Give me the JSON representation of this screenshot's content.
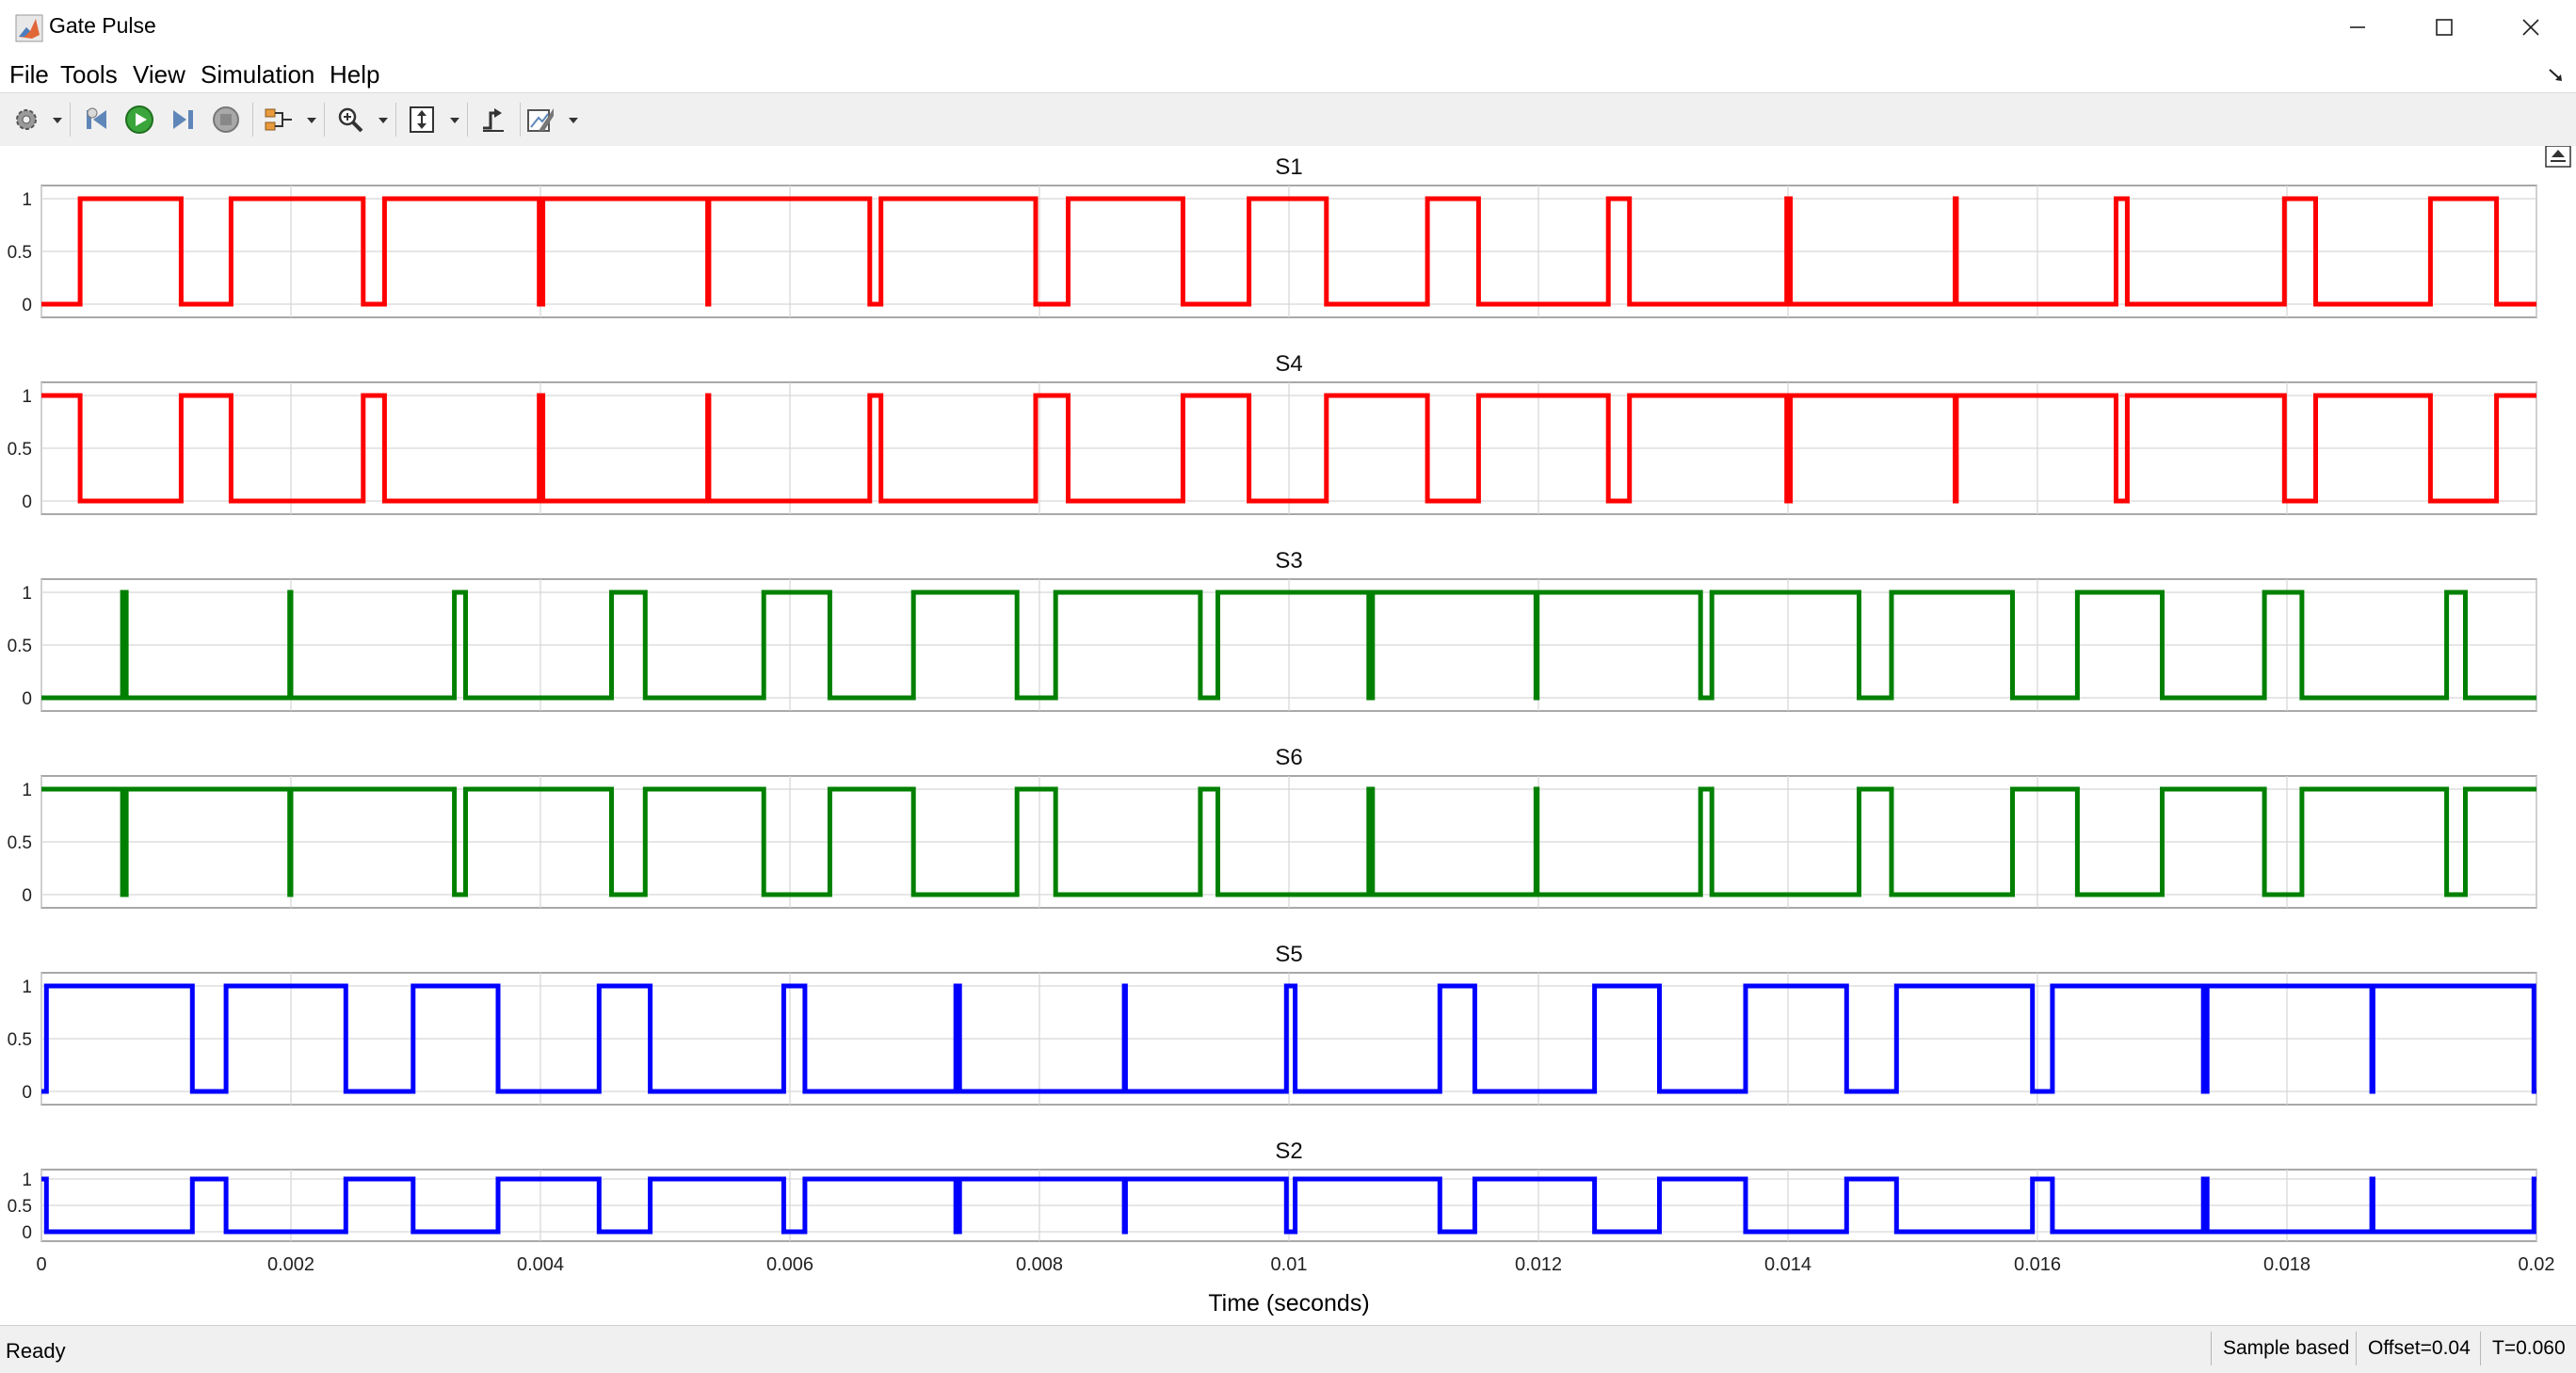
{
  "window": {
    "title": "Gate Pulse"
  },
  "menu": {
    "items": [
      "File",
      "Tools",
      "View",
      "Simulation",
      "Help"
    ]
  },
  "toolbar": {
    "buttons": [
      "gear-icon",
      "step-back-icon",
      "run-icon",
      "step-forward-icon",
      "stop-icon",
      "signal-select-icon",
      "zoom-icon",
      "autoscale-icon",
      "trigger-icon",
      "measure-icon"
    ]
  },
  "chart_data": {
    "type": "line",
    "xlabel": "Time (seconds)",
    "xlim": [
      0,
      0.02
    ],
    "x_ticks": [
      "0",
      "0.002",
      "0.004",
      "0.006",
      "0.008",
      "0.01",
      "0.012",
      "0.014",
      "0.016",
      "0.018",
      "0.02"
    ],
    "y_ticks": [
      "0",
      "0.5",
      "1"
    ],
    "grid": true,
    "panels": [
      {
        "title": "S1",
        "color": "#ff0000",
        "initial": 0,
        "edges": [
          0.00031,
          0.00112,
          0.00152,
          0.00258,
          0.00275,
          0.00399,
          0.00402,
          0.00534,
          0.00535,
          0.00664,
          0.00673,
          0.00797,
          0.00823,
          0.00915,
          0.00968,
          0.0103,
          0.01111,
          0.01152,
          0.01256,
          0.01273,
          0.01399,
          0.01402,
          0.01534,
          0.01535,
          0.01663,
          0.01672,
          0.01798,
          0.01823,
          0.01915,
          0.01968
        ]
      },
      {
        "title": "S4",
        "color": "#ff0000",
        "initial": 1,
        "edges": [
          0.00031,
          0.00112,
          0.00152,
          0.00258,
          0.00275,
          0.00399,
          0.00402,
          0.00534,
          0.00535,
          0.00664,
          0.00673,
          0.00797,
          0.00823,
          0.00915,
          0.00968,
          0.0103,
          0.01111,
          0.01152,
          0.01256,
          0.01273,
          0.01399,
          0.01402,
          0.01534,
          0.01535,
          0.01663,
          0.01672,
          0.01798,
          0.01823,
          0.01915,
          0.01968
        ]
      },
      {
        "title": "S3",
        "color": "#008000",
        "initial": 0,
        "edges": [
          0.00065,
          0.00068,
          0.00199,
          0.002,
          0.00331,
          0.0034,
          0.00457,
          0.00484,
          0.00579,
          0.00632,
          0.00699,
          0.00782,
          0.00813,
          0.00929,
          0.00943,
          0.01064,
          0.01067,
          0.01198,
          0.01199,
          0.0133,
          0.01339,
          0.01457,
          0.01483,
          0.0158,
          0.01632,
          0.017,
          0.01782,
          0.01812,
          0.01928,
          0.01943
        ]
      },
      {
        "title": "S6",
        "color": "#008000",
        "initial": 1,
        "edges": [
          0.00065,
          0.00068,
          0.00199,
          0.002,
          0.00331,
          0.0034,
          0.00457,
          0.00484,
          0.00579,
          0.00632,
          0.00699,
          0.00782,
          0.00813,
          0.00929,
          0.00943,
          0.01064,
          0.01067,
          0.01198,
          0.01199,
          0.0133,
          0.01339,
          0.01457,
          0.01483,
          0.0158,
          0.01632,
          0.017,
          0.01782,
          0.01812,
          0.01928,
          0.01943
        ]
      },
      {
        "title": "S5",
        "color": "#0000ff",
        "initial": 0,
        "edges": [
          4e-05,
          0.00121,
          0.00148,
          0.00244,
          0.00298,
          0.00366,
          0.00447,
          0.00488,
          0.00595,
          0.00612,
          0.00733,
          0.00736,
          0.00868,
          0.00869,
          0.00998,
          0.01005,
          0.01121,
          0.01149,
          0.01245,
          0.01297,
          0.01366,
          0.01447,
          0.01487,
          0.01596,
          0.01612,
          0.01733,
          0.01736,
          0.01868,
          0.01869,
          0.01998
        ]
      },
      {
        "title": "S2",
        "color": "#0000ff",
        "initial": 1,
        "edges": [
          4e-05,
          0.00121,
          0.00148,
          0.00244,
          0.00298,
          0.00366,
          0.00447,
          0.00488,
          0.00595,
          0.00612,
          0.00733,
          0.00736,
          0.00868,
          0.00869,
          0.00998,
          0.01005,
          0.01121,
          0.01149,
          0.01245,
          0.01297,
          0.01366,
          0.01447,
          0.01487,
          0.01596,
          0.01612,
          0.01733,
          0.01736,
          0.01868,
          0.01869,
          0.01998
        ]
      }
    ]
  },
  "status": {
    "ready": "Ready",
    "mode": "Sample based",
    "offset": "Offset=0.04",
    "time": "T=0.060"
  }
}
